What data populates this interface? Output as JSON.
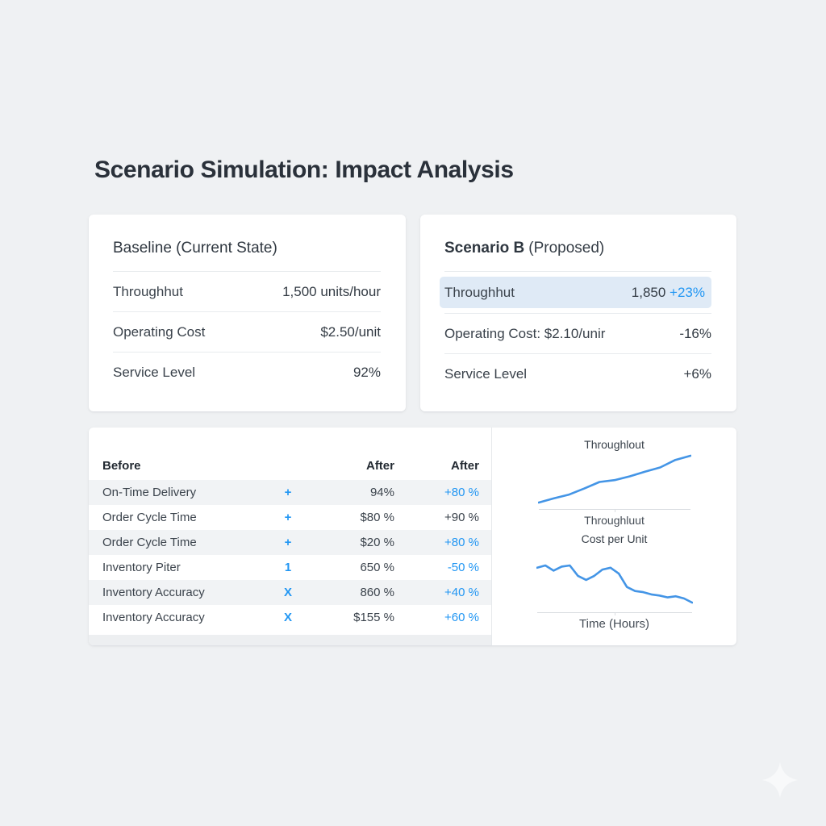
{
  "page": {
    "title": "Scenario Simulation: Impact Analysis"
  },
  "baseline_card": {
    "title": "Baseline (Current State)",
    "rows": [
      {
        "label": "Throughhut",
        "value": "1,500 units/hour"
      },
      {
        "label": "Operating Cost",
        "value": "$2.50/unit"
      },
      {
        "label": "Service Level",
        "value": "92%"
      }
    ]
  },
  "scenario_card": {
    "title": "Scenario B",
    "title_suffix": "(Proposed)",
    "highlight_row": {
      "label": "Throughhut",
      "value": "1,850",
      "change": "+23%",
      "highlighted": true
    },
    "rows": [
      {
        "label": "Operating Cost: $2.10/unir",
        "change": "-16%"
      },
      {
        "label": "Service Level",
        "change": "+6%"
      }
    ]
  },
  "metrics_table": {
    "headers": {
      "col1": "Before",
      "col3": "After",
      "col4": "After"
    },
    "rows": [
      {
        "metric": "On-Time Delivery",
        "symbol": "+",
        "value": "94%",
        "change": "+80 %",
        "change_color": "blue"
      },
      {
        "metric": "Order Cycle Time",
        "symbol": "+",
        "value": "$80 %",
        "change": "+90 %",
        "change_color": "dark"
      },
      {
        "metric": "Order Cycle Time",
        "symbol": "+",
        "value": "$20 %",
        "change": "+80 %",
        "change_color": "blue"
      },
      {
        "metric": "Inventory Piter",
        "symbol": "1",
        "value": "650 %",
        "change": "-50 %",
        "change_color": "blue"
      },
      {
        "metric": "Inventory Accuracy",
        "symbol": "X",
        "value": "860 %",
        "change": "+40 %",
        "change_color": "blue"
      },
      {
        "metric": "Inventory Accuracy",
        "symbol": "X",
        "value": "$155 %",
        "change": "+60 %",
        "change_color": "blue"
      }
    ]
  },
  "charts_panel": {
    "chart1_title": "Throughlout",
    "chart1_axis_label": "Throughluut",
    "chart2_title": "Cost per Unit",
    "chart2_axis_label": "Time (Hours)"
  },
  "chart_data": [
    {
      "type": "line",
      "title": "Throughlout",
      "xlabel": "Throughluut",
      "x": [
        0,
        1,
        2,
        3,
        4,
        5,
        6,
        7,
        8,
        9,
        10
      ],
      "y": [
        0,
        9,
        17,
        30,
        44,
        48,
        56,
        66,
        75,
        91,
        100
      ],
      "y_unit": "relative 0-100 (unlabeled sparkline)",
      "trend": "rising",
      "grid": false,
      "legend": false,
      "line_color": "#4495e6"
    },
    {
      "type": "line",
      "title": "Cost per Unit",
      "xlabel": "Time (Hours)",
      "x": [
        0,
        1,
        2,
        3,
        4,
        5,
        6,
        7,
        8,
        9,
        10,
        11,
        12,
        13,
        14,
        15,
        16,
        17,
        18,
        19
      ],
      "y": [
        94,
        100,
        86,
        97,
        100,
        72,
        61,
        72,
        89,
        94,
        78,
        42,
        31,
        28,
        22,
        19,
        14,
        17,
        11,
        0
      ],
      "y_unit": "relative 0-100 (unlabeled sparkline)",
      "trend": "declining",
      "grid": false,
      "legend": false,
      "line_color": "#4495e6"
    }
  ],
  "icons": {
    "sparkle": "four-pointed-star"
  },
  "colors": {
    "accent_blue": "#2196f3",
    "chart_line_blue": "#4495e6",
    "highlight_row_bg": "#dfeaf6",
    "alt_row_bg": "#f1f3f5",
    "page_bg": "#eff1f3",
    "card_bg": "#ffffff",
    "text_dark": "#2a313a"
  }
}
